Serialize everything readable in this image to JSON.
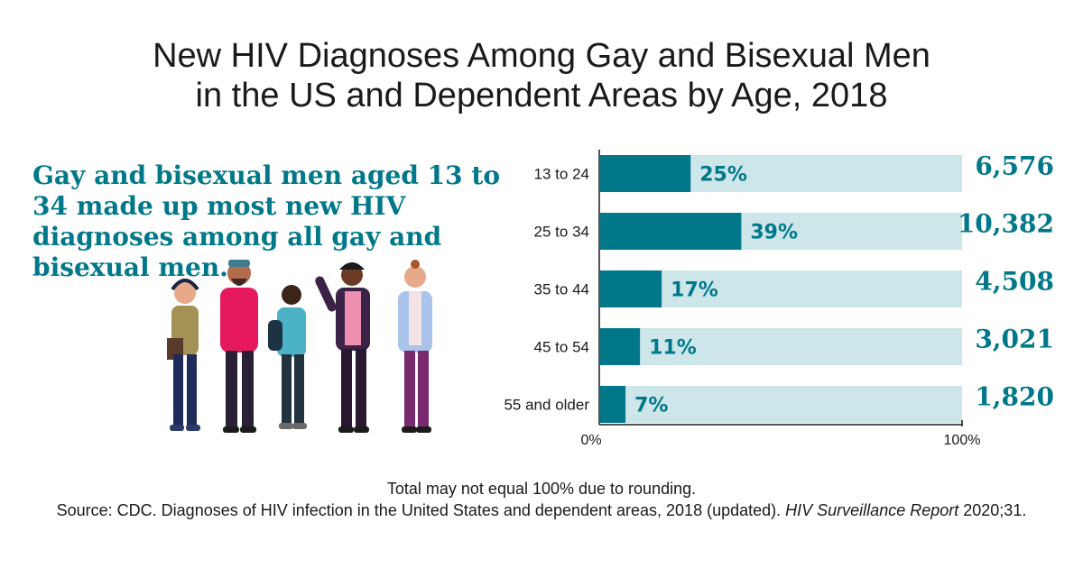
{
  "title_line1": "New HIV Diagnoses Among Gay and Bisexual Men",
  "title_line2": "in the US and Dependent Areas by Age, 2018",
  "headline": "Gay and bisexual men aged 13 to 34 made up most new HIV diagnoses among all gay and bisexual men.",
  "colors": {
    "bar_fill": "#00788a",
    "bar_track": "#cce6ea",
    "headline": "#00788a",
    "count": "#00788a"
  },
  "chart_data": {
    "type": "bar",
    "orientation": "horizontal",
    "categories": [
      "13 to 24",
      "25 to 34",
      "35 to 44",
      "45 to 54",
      "55 and older"
    ],
    "values": [
      25,
      39,
      17,
      11,
      7
    ],
    "value_labels": [
      "25%",
      "39%",
      "17%",
      "11%",
      "7%"
    ],
    "counts": [
      "6,576",
      "10,382",
      "4,508",
      "3,021",
      "1,820"
    ],
    "xlim": [
      0,
      100
    ],
    "x_tick_labels": [
      "0%",
      "100%"
    ]
  },
  "footnote_line1": "Total may not equal 100% due to rounding.",
  "footnote_source": "Source: CDC. Diagnoses of HIV infection in the United States and dependent areas, 2018 (updated).",
  "footnote_report": "HIV Surveillance Report",
  "footnote_end": "2020;31."
}
